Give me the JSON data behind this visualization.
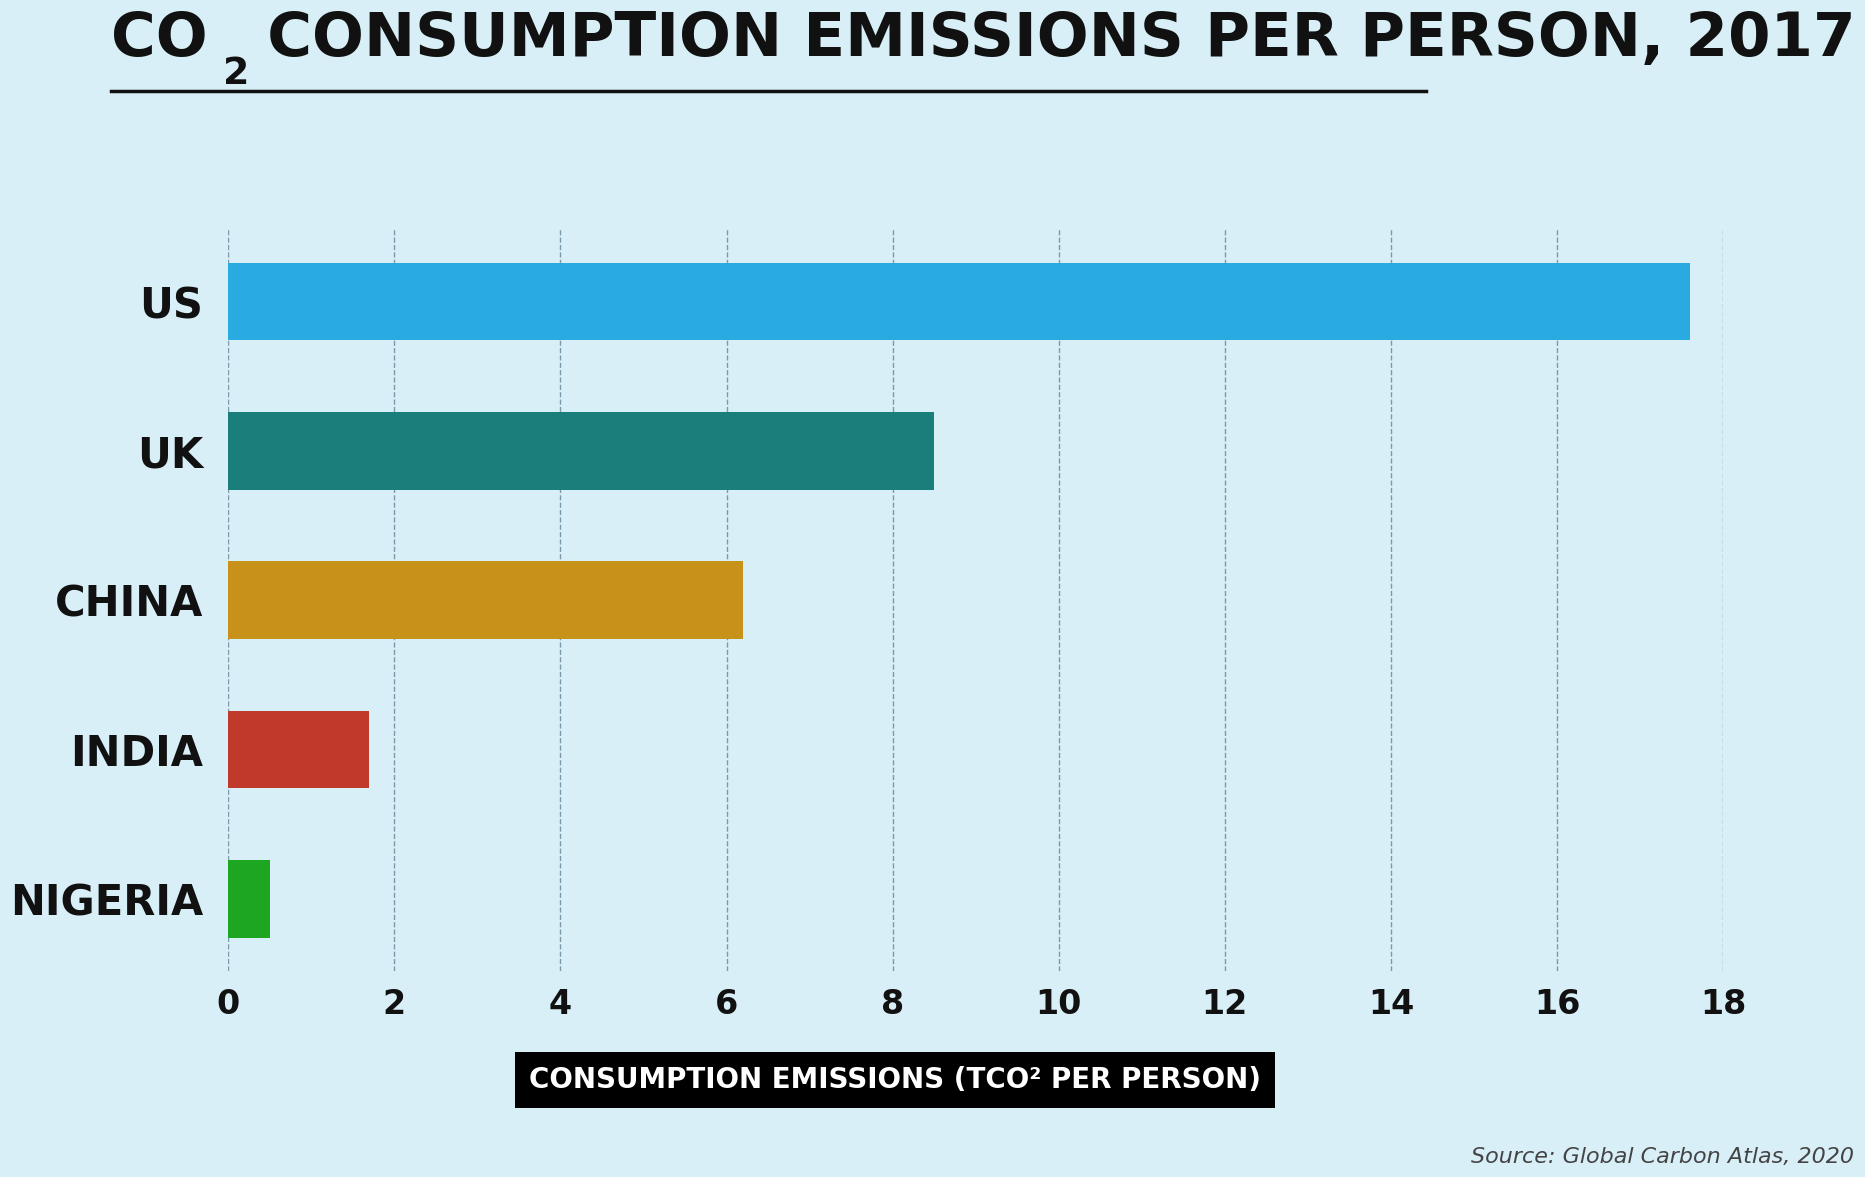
{
  "categories": [
    "US",
    "UK",
    "CHINA",
    "INDIA",
    "NIGERIA"
  ],
  "values": [
    17.6,
    8.5,
    6.2,
    1.7,
    0.5
  ],
  "bar_colors": [
    "#29ABE2",
    "#1A7F7A",
    "#C8921A",
    "#C0392B",
    "#1DA622"
  ],
  "background_color": "#D9EFF8",
  "source_text": "Source: Global Carbon Atlas, 2020",
  "xlim": [
    0,
    18
  ],
  "xticks": [
    0,
    2,
    4,
    6,
    8,
    10,
    12,
    14,
    16,
    18
  ],
  "bar_height": 0.52,
  "title_fontsize": 44,
  "ytick_fontsize": 30,
  "xtick_fontsize": 24,
  "xlabel_fontsize": 20,
  "source_fontsize": 16,
  "grid_color": "#7a9aaa",
  "grid_linewidth": 1.0,
  "title_color": "#111111",
  "tick_color": "#111111",
  "underline_color": "#111111"
}
